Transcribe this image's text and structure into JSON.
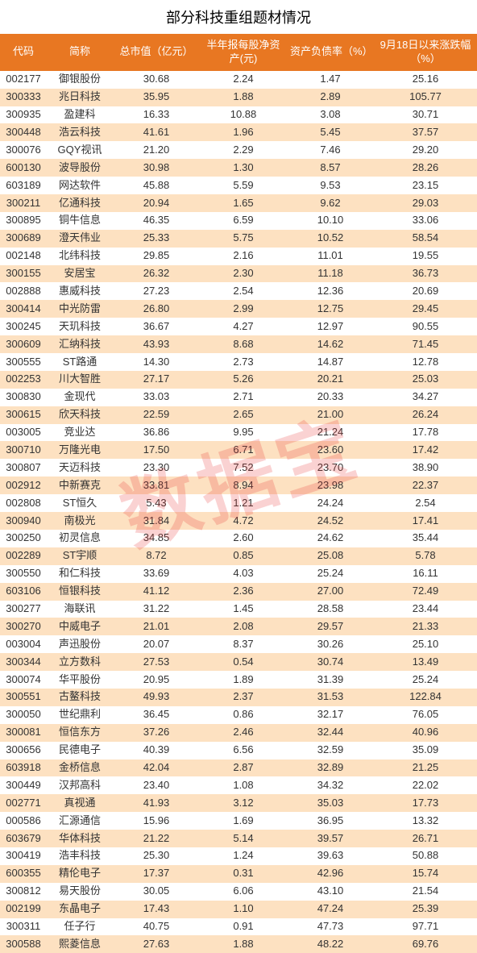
{
  "title": "部分科技重组题材情况",
  "watermark": "数据宝",
  "colors": {
    "header_bg": "#e87722",
    "header_text": "#ffffff",
    "row_odd_bg": "#ffffff",
    "row_even_bg": "#fde1c1",
    "cell_text": "#333333",
    "watermark_color": "rgba(230,50,50,0.22)"
  },
  "columns": [
    "代码",
    "简称",
    "总市值（亿元）",
    "半年报每股净资产(元)",
    "资产负债率（%）",
    "9月18日以来涨跌幅（%）"
  ],
  "rows": [
    [
      "002177",
      "御银股份",
      "30.68",
      "2.24",
      "1.47",
      "25.16"
    ],
    [
      "300333",
      "兆日科技",
      "35.95",
      "1.88",
      "2.89",
      "105.77"
    ],
    [
      "300935",
      "盈建科",
      "16.33",
      "10.88",
      "3.08",
      "30.71"
    ],
    [
      "300448",
      "浩云科技",
      "41.61",
      "1.96",
      "5.45",
      "37.57"
    ],
    [
      "300076",
      "GQY视讯",
      "21.20",
      "2.29",
      "7.46",
      "29.20"
    ],
    [
      "600130",
      "波导股份",
      "30.98",
      "1.30",
      "8.57",
      "28.26"
    ],
    [
      "603189",
      "网达软件",
      "45.88",
      "5.59",
      "9.53",
      "23.15"
    ],
    [
      "300211",
      "亿通科技",
      "20.94",
      "1.65",
      "9.62",
      "29.03"
    ],
    [
      "300895",
      "铜牛信息",
      "46.35",
      "6.59",
      "10.10",
      "33.06"
    ],
    [
      "300689",
      "澄天伟业",
      "25.33",
      "5.75",
      "10.52",
      "58.54"
    ],
    [
      "002148",
      "北纬科技",
      "29.85",
      "2.16",
      "11.01",
      "19.55"
    ],
    [
      "300155",
      "安居宝",
      "26.32",
      "2.30",
      "11.18",
      "36.73"
    ],
    [
      "002888",
      "惠威科技",
      "27.23",
      "2.54",
      "12.36",
      "20.69"
    ],
    [
      "300414",
      "中光防雷",
      "26.80",
      "2.99",
      "12.75",
      "29.45"
    ],
    [
      "300245",
      "天玑科技",
      "36.67",
      "4.27",
      "12.97",
      "90.55"
    ],
    [
      "300609",
      "汇纳科技",
      "43.93",
      "8.68",
      "14.62",
      "71.45"
    ],
    [
      "300555",
      "ST路通",
      "14.30",
      "2.73",
      "14.87",
      "12.78"
    ],
    [
      "002253",
      "川大智胜",
      "27.17",
      "5.26",
      "20.21",
      "25.03"
    ],
    [
      "300830",
      "金现代",
      "33.03",
      "2.71",
      "20.33",
      "34.27"
    ],
    [
      "300615",
      "欣天科技",
      "22.59",
      "2.65",
      "21.00",
      "26.24"
    ],
    [
      "003005",
      "竞业达",
      "36.86",
      "9.95",
      "21.24",
      "17.78"
    ],
    [
      "300710",
      "万隆光电",
      "17.50",
      "6.71",
      "23.60",
      "17.42"
    ],
    [
      "300807",
      "天迈科技",
      "23.30",
      "7.52",
      "23.70",
      "38.90"
    ],
    [
      "002912",
      "中新赛克",
      "33.81",
      "8.94",
      "23.98",
      "22.37"
    ],
    [
      "002808",
      "ST恒久",
      "5.43",
      "1.21",
      "24.24",
      "2.54"
    ],
    [
      "300940",
      "南极光",
      "31.84",
      "4.72",
      "24.52",
      "17.41"
    ],
    [
      "300250",
      "初灵信息",
      "34.85",
      "2.60",
      "24.62",
      "35.44"
    ],
    [
      "002289",
      "ST宇顺",
      "8.72",
      "0.85",
      "25.08",
      "5.78"
    ],
    [
      "300550",
      "和仁科技",
      "33.69",
      "4.03",
      "25.24",
      "16.11"
    ],
    [
      "603106",
      "恒银科技",
      "41.12",
      "2.36",
      "27.00",
      "72.49"
    ],
    [
      "300277",
      "海联讯",
      "31.22",
      "1.45",
      "28.58",
      "23.44"
    ],
    [
      "300270",
      "中威电子",
      "21.01",
      "2.08",
      "29.57",
      "21.33"
    ],
    [
      "003004",
      "声迅股份",
      "20.07",
      "8.37",
      "30.26",
      "25.10"
    ],
    [
      "300344",
      "立方数科",
      "27.53",
      "0.54",
      "30.74",
      "13.49"
    ],
    [
      "300074",
      "华平股份",
      "20.95",
      "1.89",
      "31.39",
      "25.24"
    ],
    [
      "300551",
      "古鳌科技",
      "49.93",
      "2.37",
      "31.53",
      "122.84"
    ],
    [
      "300050",
      "世纪鼎利",
      "36.45",
      "0.86",
      "32.17",
      "76.05"
    ],
    [
      "300081",
      "恒信东方",
      "37.26",
      "2.46",
      "32.44",
      "40.96"
    ],
    [
      "300656",
      "民德电子",
      "40.39",
      "6.56",
      "32.59",
      "35.09"
    ],
    [
      "603918",
      "金桥信息",
      "42.04",
      "2.87",
      "32.89",
      "21.25"
    ],
    [
      "300449",
      "汉邦高科",
      "23.40",
      "1.08",
      "34.32",
      "22.02"
    ],
    [
      "002771",
      "真视通",
      "41.93",
      "3.12",
      "35.03",
      "17.73"
    ],
    [
      "000586",
      "汇源通信",
      "15.96",
      "1.69",
      "36.95",
      "13.32"
    ],
    [
      "603679",
      "华体科技",
      "21.22",
      "5.14",
      "39.57",
      "26.71"
    ],
    [
      "300419",
      "浩丰科技",
      "25.30",
      "1.24",
      "39.63",
      "50.88"
    ],
    [
      "600355",
      "精伦电子",
      "17.37",
      "0.31",
      "42.96",
      "15.74"
    ],
    [
      "300812",
      "易天股份",
      "30.05",
      "6.06",
      "43.10",
      "21.54"
    ],
    [
      "002199",
      "东晶电子",
      "17.43",
      "1.10",
      "47.24",
      "25.39"
    ],
    [
      "300311",
      "任子行",
      "40.75",
      "0.91",
      "47.73",
      "97.71"
    ],
    [
      "300588",
      "熙菱信息",
      "27.63",
      "1.88",
      "48.22",
      "69.76"
    ]
  ]
}
